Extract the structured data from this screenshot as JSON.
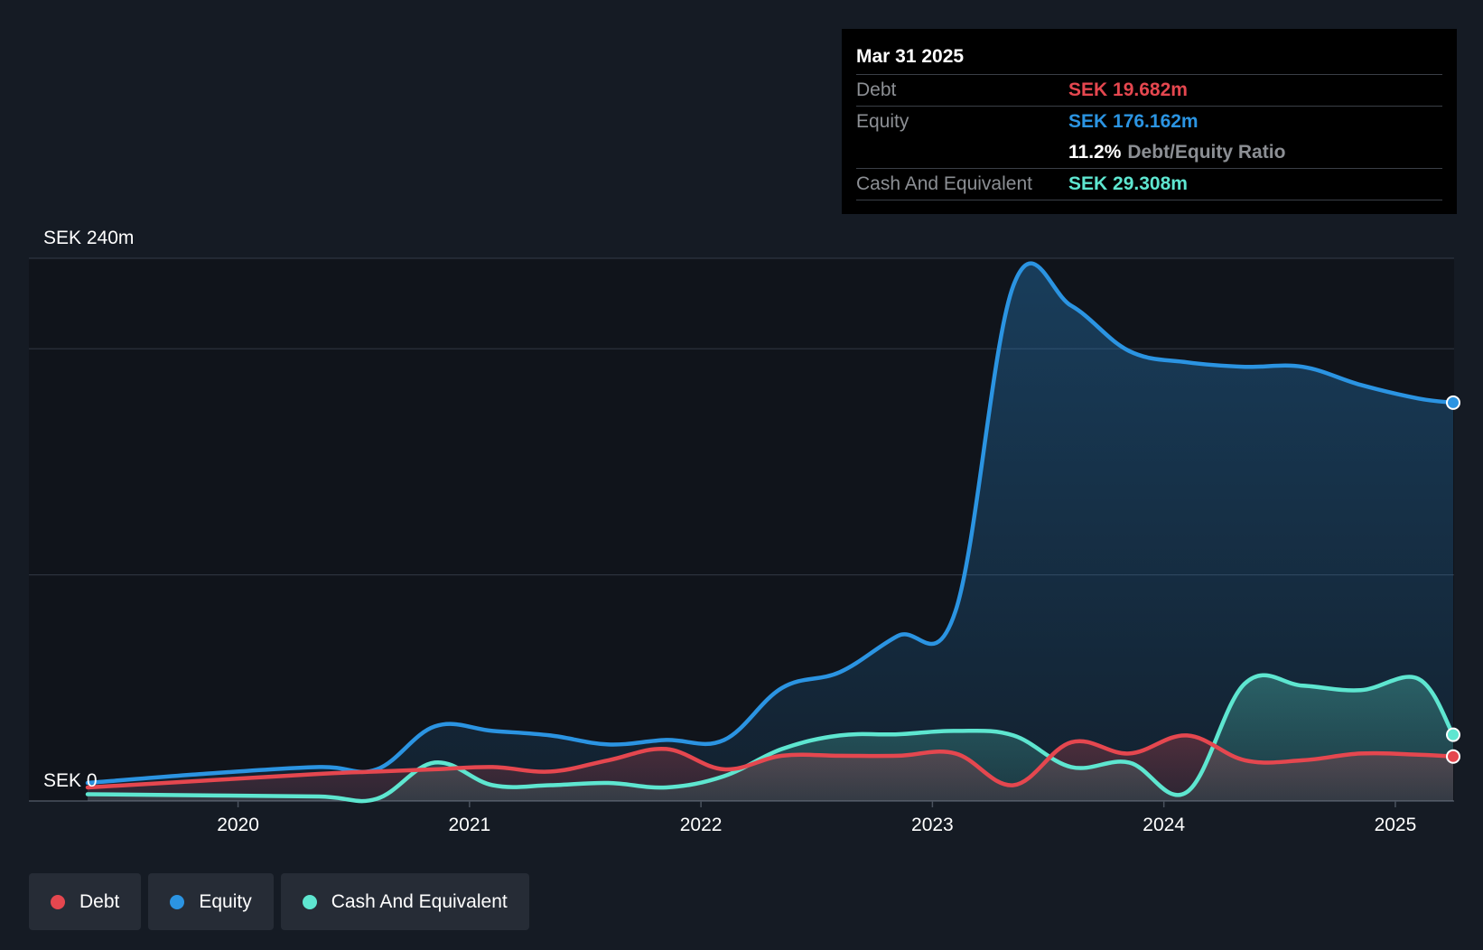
{
  "chart_data": {
    "type": "area",
    "title": "",
    "currency": "SEK",
    "x_unit": "year",
    "xlim": [
      2019.35,
      2025.25
    ],
    "ylim": [
      0,
      240
    ],
    "y_top_label": "SEK 240m",
    "y_bottom_label": "SEK 0",
    "gridlines": [
      0,
      100,
      200,
      240
    ],
    "x_ticks": [
      {
        "value": 2020.0,
        "label": "2020"
      },
      {
        "value": 2021.0,
        "label": "2021"
      },
      {
        "value": 2022.0,
        "label": "2022"
      },
      {
        "value": 2023.0,
        "label": "2023"
      },
      {
        "value": 2024.0,
        "label": "2024"
      },
      {
        "value": 2025.0,
        "label": "2025"
      }
    ],
    "series": [
      {
        "name": "Debt",
        "color": "#e5474f",
        "x": [
          2019.35,
          2019.85,
          2020.35,
          2020.6,
          2020.85,
          2021.1,
          2021.35,
          2021.6,
          2021.85,
          2022.1,
          2022.35,
          2022.6,
          2022.85,
          2023.1,
          2023.35,
          2023.6,
          2023.85,
          2024.1,
          2024.35,
          2024.6,
          2024.85,
          2025.1,
          2025.25
        ],
        "values": [
          6,
          9,
          12,
          13,
          14,
          15,
          13,
          18,
          23,
          14,
          20,
          20,
          20,
          21,
          7,
          26,
          21,
          29,
          18,
          18,
          21,
          20.5,
          19.682
        ]
      },
      {
        "name": "Equity",
        "color": "#2b94e2",
        "x": [
          2019.35,
          2019.85,
          2020.35,
          2020.6,
          2020.85,
          2021.1,
          2021.35,
          2021.6,
          2021.85,
          2022.1,
          2022.35,
          2022.6,
          2022.85,
          2023.1,
          2023.35,
          2023.6,
          2023.85,
          2024.1,
          2024.35,
          2024.6,
          2024.85,
          2025.1,
          2025.25
        ],
        "values": [
          8,
          12,
          15,
          14,
          33,
          31,
          29,
          25,
          27,
          27,
          50,
          57,
          73,
          84,
          228,
          219,
          199,
          194,
          192,
          192,
          184,
          178,
          176.162
        ]
      },
      {
        "name": "Cash And Equivalent",
        "color": "#5ee6d0",
        "x": [
          2019.35,
          2019.85,
          2020.35,
          2020.6,
          2020.85,
          2021.1,
          2021.35,
          2021.6,
          2021.85,
          2022.1,
          2022.35,
          2022.6,
          2022.85,
          2023.1,
          2023.35,
          2023.6,
          2023.85,
          2024.1,
          2024.35,
          2024.6,
          2024.85,
          2025.1,
          2025.25
        ],
        "values": [
          3,
          2.5,
          2,
          1,
          17,
          7,
          7,
          8,
          6,
          11,
          23,
          29,
          29.5,
          31,
          29,
          15,
          17,
          4,
          52,
          51,
          49,
          54,
          29.308
        ]
      }
    ]
  },
  "tooltip": {
    "date": "Mar 31 2025",
    "debt_label": "Debt",
    "debt_value": "SEK 19.682m",
    "equity_label": "Equity",
    "equity_value": "SEK 176.162m",
    "ratio_value": "11.2%",
    "ratio_label": "Debt/Equity Ratio",
    "cash_label": "Cash And Equivalent",
    "cash_value": "SEK 29.308m"
  },
  "legend": [
    {
      "label": "Debt",
      "color": "#e5474f"
    },
    {
      "label": "Equity",
      "color": "#2b94e2"
    },
    {
      "label": "Cash And Equivalent",
      "color": "#5ee6d0"
    }
  ]
}
